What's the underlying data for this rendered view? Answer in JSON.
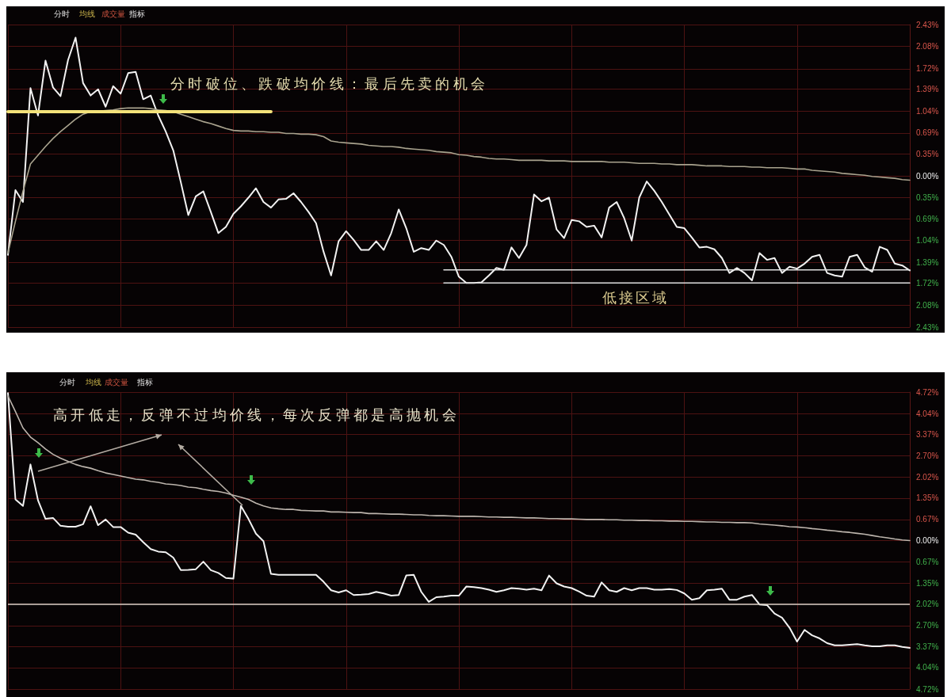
{
  "chart_data": [
    {
      "type": "line",
      "tick_labels": "y",
      "grid": true,
      "categories": [
        null,
        null,
        null,
        null,
        null,
        null,
        null,
        null,
        null,
        null,
        null,
        null,
        null,
        null,
        null,
        null,
        null,
        null,
        null,
        null,
        null,
        null,
        null,
        null,
        null,
        null,
        null,
        null,
        null,
        null,
        null,
        null,
        null,
        null,
        null,
        null,
        null,
        null,
        null,
        null,
        null,
        null,
        null,
        null,
        null,
        null,
        null,
        null,
        null,
        null,
        null,
        null,
        null,
        null,
        null,
        null,
        null,
        null,
        null,
        null,
        null,
        null,
        null,
        null,
        null,
        null,
        null,
        null,
        null,
        null,
        null,
        null,
        null,
        null,
        null,
        null,
        null,
        null,
        null,
        null,
        null,
        null,
        null,
        null,
        null,
        null,
        null,
        null,
        null,
        null,
        null,
        null,
        null,
        null,
        null,
        null,
        null,
        null,
        null,
        null,
        null,
        null,
        null,
        null,
        null,
        null,
        null,
        null,
        null,
        null,
        null,
        null,
        null,
        null,
        null,
        null,
        null,
        null,
        null,
        null,
        null
      ],
      "ylim": [
        -2.43,
        2.43
      ],
      "yticks": [
        {
          "value": 2.43,
          "label": "2.43%"
        },
        {
          "value": 2.08,
          "label": "2.08%"
        },
        {
          "value": 1.72,
          "label": "1.72%"
        },
        {
          "value": 1.39,
          "label": "1.39%"
        },
        {
          "value": 1.04,
          "label": "1.04%"
        },
        {
          "value": 0.69,
          "label": "0.69%"
        },
        {
          "value": 0.35,
          "label": "0.35%"
        },
        {
          "value": 0,
          "label": "0.00%"
        },
        {
          "value": -0.35,
          "label": "0.35%"
        },
        {
          "value": -0.69,
          "label": "0.69%"
        },
        {
          "value": -1.04,
          "label": "1.04%"
        },
        {
          "value": -1.39,
          "label": "1.39%"
        },
        {
          "value": -1.72,
          "label": "1.72%"
        },
        {
          "value": -2.08,
          "label": "2.08%"
        },
        {
          "value": -2.43,
          "label": "2.43%"
        }
      ],
      "series": [
        {
          "color": "#f2f2f2",
          "values": [
            -1.27,
            -0.23,
            -0.42,
            1.41,
            0.97,
            1.85,
            1.42,
            1.28,
            1.86,
            2.22,
            1.49,
            1.29,
            1.39,
            1.11,
            1.44,
            1.32,
            1.65,
            1.67,
            1.23,
            1.29,
            0.97,
            0.71,
            0.41,
            -0.1,
            -0.63,
            -0.33,
            -0.25,
            -0.58,
            -0.92,
            -0.82,
            -0.61,
            -0.49,
            -0.35,
            -0.2,
            -0.42,
            -0.51,
            -0.38,
            -0.37,
            -0.28,
            -0.42,
            -0.58,
            -0.76,
            -1.22,
            -1.6,
            -1.05,
            -0.89,
            -1.03,
            -1.19,
            -1.19,
            -1.05,
            -1.19,
            -0.92,
            -0.54,
            -0.84,
            -1.22,
            -1.16,
            -1.19,
            -1.04,
            -1.11,
            -1.3,
            -1.62,
            -1.72,
            -1.72,
            -1.71,
            -1.6,
            -1.48,
            -1.51,
            -1.15,
            -1.32,
            -1.11,
            -0.3,
            -0.41,
            -0.35,
            -0.86,
            -1.0,
            -0.71,
            -0.73,
            -0.82,
            -0.8,
            -0.99,
            -0.51,
            -0.42,
            -0.68,
            -1.04,
            -0.35,
            -0.09,
            -0.24,
            -0.42,
            -0.62,
            -0.82,
            -0.84,
            -0.99,
            -1.15,
            -1.14,
            -1.18,
            -1.32,
            -1.56,
            -1.48,
            -1.56,
            -1.68,
            -1.24,
            -1.35,
            -1.32,
            -1.56,
            -1.46,
            -1.49,
            -1.41,
            -1.3,
            -1.27,
            -1.56,
            -1.6,
            -1.62,
            -1.3,
            -1.27,
            -1.47,
            -1.54,
            -1.14,
            -1.19,
            -1.41,
            -1.44,
            -1.52
          ]
        },
        {
          "color": "#a9a38e",
          "values": [
            -1.24,
            -0.73,
            -0.25,
            0.19,
            0.33,
            0.47,
            0.6,
            0.71,
            0.81,
            0.91,
            0.99,
            1.03,
            1.04,
            1.05,
            1.06,
            1.08,
            1.09,
            1.09,
            1.09,
            1.08,
            1.06,
            1.05,
            1.03,
            0.99,
            0.95,
            0.91,
            0.87,
            0.84,
            0.8,
            0.76,
            0.73,
            0.72,
            0.72,
            0.71,
            0.71,
            0.7,
            0.7,
            0.68,
            0.68,
            0.67,
            0.67,
            0.66,
            0.63,
            0.56,
            0.54,
            0.53,
            0.52,
            0.51,
            0.49,
            0.48,
            0.47,
            0.47,
            0.46,
            0.44,
            0.43,
            0.42,
            0.41,
            0.39,
            0.38,
            0.37,
            0.34,
            0.33,
            0.31,
            0.3,
            0.28,
            0.27,
            0.27,
            0.26,
            0.25,
            0.25,
            0.25,
            0.25,
            0.24,
            0.24,
            0.24,
            0.23,
            0.23,
            0.23,
            0.23,
            0.23,
            0.22,
            0.22,
            0.22,
            0.21,
            0.2,
            0.2,
            0.2,
            0.19,
            0.19,
            0.18,
            0.18,
            0.18,
            0.17,
            0.16,
            0.16,
            0.16,
            0.15,
            0.15,
            0.15,
            0.14,
            0.14,
            0.13,
            0.13,
            0.13,
            0.12,
            0.11,
            0.11,
            0.09,
            0.08,
            0.07,
            0.06,
            0.04,
            0.03,
            0.02,
            0.01,
            -0.01,
            -0.02,
            -0.03,
            -0.04,
            -0.06,
            -0.07
          ]
        },
        {
          "color": "#f3e27a",
          "values": [
            1.03,
            1.03,
            1.03,
            1.03,
            1.03,
            1.03,
            1.03,
            1.03,
            1.03,
            1.03,
            1.03,
            1.03,
            1.03,
            1.03,
            1.03,
            1.03,
            1.03,
            1.03,
            1.03,
            1.03,
            1.03,
            1.03,
            1.03,
            1.03,
            1.03,
            1.03,
            1.03,
            1.03,
            1.03,
            1.03,
            1.03,
            1.03,
            1.03,
            1.03,
            1.03,
            1.03,
            null,
            null,
            null,
            null,
            null,
            null,
            null,
            null,
            null,
            null,
            null,
            null,
            null,
            null,
            null,
            null,
            null,
            null,
            null,
            null,
            null,
            null,
            null,
            null,
            null,
            null,
            null,
            null,
            null,
            null,
            null,
            null,
            null,
            null,
            null,
            null,
            null,
            null,
            null,
            null,
            null,
            null,
            null,
            null,
            null,
            null,
            null,
            null,
            null,
            null,
            null,
            null,
            null,
            null,
            null,
            null,
            null,
            null,
            null,
            null,
            null,
            null,
            null,
            null,
            null,
            null,
            null,
            null,
            null,
            null,
            null,
            null,
            null,
            null,
            null,
            null,
            null,
            null,
            null,
            null,
            null,
            null,
            null,
            null,
            null
          ]
        },
        {
          "color": "#e0e0e0",
          "values": [
            null,
            null,
            null,
            null,
            null,
            null,
            null,
            null,
            null,
            null,
            null,
            null,
            null,
            null,
            null,
            null,
            null,
            null,
            null,
            null,
            null,
            null,
            null,
            null,
            null,
            null,
            null,
            null,
            null,
            null,
            null,
            null,
            null,
            null,
            null,
            null,
            null,
            null,
            null,
            null,
            null,
            null,
            null,
            null,
            null,
            null,
            null,
            null,
            null,
            null,
            null,
            null,
            null,
            null,
            null,
            null,
            null,
            null,
            -1.51,
            -1.51,
            -1.51,
            -1.51,
            -1.51,
            -1.51,
            -1.51,
            -1.51,
            -1.51,
            -1.51,
            -1.51,
            -1.51,
            -1.51,
            -1.51,
            -1.51,
            -1.51,
            -1.51,
            -1.51,
            -1.51,
            -1.51,
            -1.51,
            -1.51,
            -1.51,
            -1.51,
            -1.51,
            -1.51,
            -1.51,
            -1.51,
            -1.51,
            -1.51,
            -1.51,
            -1.51,
            -1.51,
            -1.51,
            -1.51,
            -1.51,
            -1.51,
            -1.51,
            -1.51,
            -1.51,
            -1.51,
            -1.51,
            -1.51,
            -1.51,
            -1.51,
            -1.51,
            -1.51,
            -1.51,
            -1.51,
            -1.51,
            -1.51,
            -1.51,
            -1.51,
            -1.51,
            -1.51,
            -1.51,
            -1.51,
            -1.51,
            -1.51,
            -1.51,
            -1.51,
            -1.51,
            -1.51
          ]
        },
        {
          "color": "#e0e0e0",
          "values": [
            null,
            null,
            null,
            null,
            null,
            null,
            null,
            null,
            null,
            null,
            null,
            null,
            null,
            null,
            null,
            null,
            null,
            null,
            null,
            null,
            null,
            null,
            null,
            null,
            null,
            null,
            null,
            null,
            null,
            null,
            null,
            null,
            null,
            null,
            null,
            null,
            null,
            null,
            null,
            null,
            null,
            null,
            null,
            null,
            null,
            null,
            null,
            null,
            null,
            null,
            null,
            null,
            null,
            null,
            null,
            null,
            null,
            null,
            -1.72,
            -1.72,
            -1.72,
            -1.72,
            -1.72,
            -1.72,
            -1.72,
            -1.72,
            -1.72,
            -1.72,
            -1.72,
            -1.72,
            -1.72,
            -1.72,
            -1.72,
            -1.72,
            -1.72,
            -1.72,
            -1.72,
            -1.72,
            -1.72,
            -1.72,
            -1.72,
            -1.72,
            -1.72,
            -1.72,
            -1.72,
            -1.72,
            -1.72,
            -1.72,
            -1.72,
            -1.72,
            -1.72,
            -1.72,
            -1.72,
            -1.72,
            -1.72,
            -1.72,
            -1.72,
            -1.72,
            -1.72,
            -1.72,
            -1.72,
            -1.72,
            -1.72,
            -1.72,
            -1.72,
            -1.72,
            -1.72,
            -1.72,
            -1.72,
            -1.72,
            -1.72,
            -1.72,
            -1.72,
            -1.72,
            -1.72,
            -1.72,
            -1.72,
            -1.72,
            -1.72,
            -1.72,
            -1.72
          ]
        }
      ],
      "annotations": [
        "分时",
        "均线",
        "成交量",
        "指标",
        "分时破位、跌破均价线：最后先卖的机会",
        "低接区域"
      ]
    },
    {
      "type": "line",
      "tick_labels": "y",
      "grid": true,
      "categories": [
        null,
        null,
        null,
        null,
        null,
        null,
        null,
        null,
        null,
        null,
        null,
        null,
        null,
        null,
        null,
        null,
        null,
        null,
        null,
        null,
        null,
        null,
        null,
        null,
        null,
        null,
        null,
        null,
        null,
        null,
        null,
        null,
        null,
        null,
        null,
        null,
        null,
        null,
        null,
        null,
        null,
        null,
        null,
        null,
        null,
        null,
        null,
        null,
        null,
        null,
        null,
        null,
        null,
        null,
        null,
        null,
        null,
        null,
        null,
        null,
        null,
        null,
        null,
        null,
        null,
        null,
        null,
        null,
        null,
        null,
        null,
        null,
        null,
        null,
        null,
        null,
        null,
        null,
        null,
        null,
        null,
        null,
        null,
        null,
        null,
        null,
        null,
        null,
        null,
        null,
        null,
        null,
        null,
        null,
        null,
        null,
        null,
        null,
        null,
        null,
        null,
        null,
        null,
        null,
        null,
        null,
        null,
        null,
        null,
        null,
        null,
        null,
        null,
        null,
        null,
        null,
        null,
        null,
        null,
        null,
        null
      ],
      "ylim": [
        -4.72,
        4.72
      ],
      "yticks": [
        {
          "value": 4.72,
          "label": "4.72%"
        },
        {
          "value": 4.04,
          "label": "4.04%"
        },
        {
          "value": 3.37,
          "label": "3.37%"
        },
        {
          "value": 2.7,
          "label": "2.70%"
        },
        {
          "value": 2.02,
          "label": "2.02%"
        },
        {
          "value": 1.35,
          "label": "1.35%"
        },
        {
          "value": 0.67,
          "label": "0.67%"
        },
        {
          "value": 0,
          "label": "0.00%"
        },
        {
          "value": -0.67,
          "label": "0.67%"
        },
        {
          "value": -1.35,
          "label": "1.35%"
        },
        {
          "value": -2.02,
          "label": "2.02%"
        },
        {
          "value": -2.7,
          "label": "2.70%"
        },
        {
          "value": -3.37,
          "label": "3.37%"
        },
        {
          "value": -4.04,
          "label": "4.04%"
        },
        {
          "value": -4.72,
          "label": "4.72%"
        }
      ],
      "series": [
        {
          "color": "#f2f2f2",
          "values": [
            4.69,
            1.31,
            1.1,
            2.42,
            1.28,
            0.69,
            0.72,
            0.47,
            0.44,
            0.44,
            0.52,
            1.09,
            0.49,
            0.67,
            0.43,
            0.43,
            0.25,
            0.19,
            -0.05,
            -0.27,
            -0.35,
            -0.37,
            -0.54,
            -0.94,
            -0.93,
            -0.91,
            -0.67,
            -0.94,
            -1.03,
            -1.19,
            -1.21,
            1.1,
            0.69,
            0.22,
            -0.02,
            -1.06,
            -1.09,
            -1.09,
            -1.09,
            -1.09,
            -1.09,
            -1.09,
            -1.31,
            -1.58,
            -1.65,
            -1.58,
            -1.73,
            -1.72,
            -1.7,
            -1.63,
            -1.68,
            -1.75,
            -1.73,
            -1.11,
            -1.09,
            -1.63,
            -1.95,
            -1.8,
            -1.78,
            -1.75,
            -1.75,
            -1.46,
            -1.48,
            -1.51,
            -1.56,
            -1.63,
            -1.58,
            -1.51,
            -1.53,
            -1.56,
            -1.53,
            -1.58,
            -1.11,
            -1.36,
            -1.46,
            -1.51,
            -1.62,
            -1.75,
            -1.78,
            -1.33,
            -1.58,
            -1.63,
            -1.51,
            -1.58,
            -1.51,
            -1.51,
            -1.56,
            -1.56,
            -1.54,
            -1.57,
            -1.68,
            -1.88,
            -1.83,
            -1.58,
            -1.56,
            -1.53,
            -1.88,
            -1.88,
            -1.78,
            -1.73,
            -2.03,
            -2.05,
            -2.32,
            -2.45,
            -2.77,
            -3.21,
            -2.84,
            -3.01,
            -3.11,
            -3.26,
            -3.33,
            -3.33,
            -3.31,
            -3.29,
            -3.33,
            -3.36,
            -3.36,
            -3.33,
            -3.33,
            -3.38,
            -3.41
          ]
        },
        {
          "color": "#bdb5ad",
          "values": [
            4.6,
            4.1,
            3.58,
            3.29,
            3.11,
            2.91,
            2.74,
            2.62,
            2.52,
            2.42,
            2.35,
            2.3,
            2.22,
            2.15,
            2.1,
            2.05,
            2.0,
            1.95,
            1.93,
            1.88,
            1.85,
            1.8,
            1.78,
            1.75,
            1.7,
            1.68,
            1.63,
            1.59,
            1.56,
            1.51,
            1.44,
            1.38,
            1.31,
            1.19,
            1.1,
            1.04,
            1.01,
            0.99,
            0.99,
            0.96,
            0.95,
            0.94,
            0.94,
            0.91,
            0.91,
            0.9,
            0.89,
            0.89,
            0.86,
            0.86,
            0.85,
            0.84,
            0.84,
            0.83,
            0.82,
            0.82,
            0.8,
            0.79,
            0.79,
            0.78,
            0.77,
            0.77,
            0.77,
            0.76,
            0.75,
            0.75,
            0.74,
            0.74,
            0.73,
            0.72,
            0.72,
            0.71,
            0.7,
            0.7,
            0.69,
            0.69,
            0.68,
            0.67,
            0.67,
            0.67,
            0.66,
            0.66,
            0.65,
            0.65,
            0.64,
            0.64,
            0.63,
            0.63,
            0.62,
            0.62,
            0.61,
            0.61,
            0.6,
            0.59,
            0.59,
            0.58,
            0.58,
            0.57,
            0.57,
            0.56,
            0.53,
            0.51,
            0.49,
            0.47,
            0.44,
            0.43,
            0.41,
            0.38,
            0.36,
            0.33,
            0.31,
            0.28,
            0.26,
            0.23,
            0.2,
            0.16,
            0.12,
            0.09,
            0.05,
            0.02,
            0.0
          ]
        }
      ],
      "ref_lines": [
        {
          "axis": "y",
          "value": -2.02,
          "color": "#d6d0c6"
        }
      ],
      "annotations": [
        "分时",
        "均线",
        "成交量",
        "指标",
        "高开低走，反弹不过均价线，每次反弹都是高抛机会"
      ]
    }
  ]
}
